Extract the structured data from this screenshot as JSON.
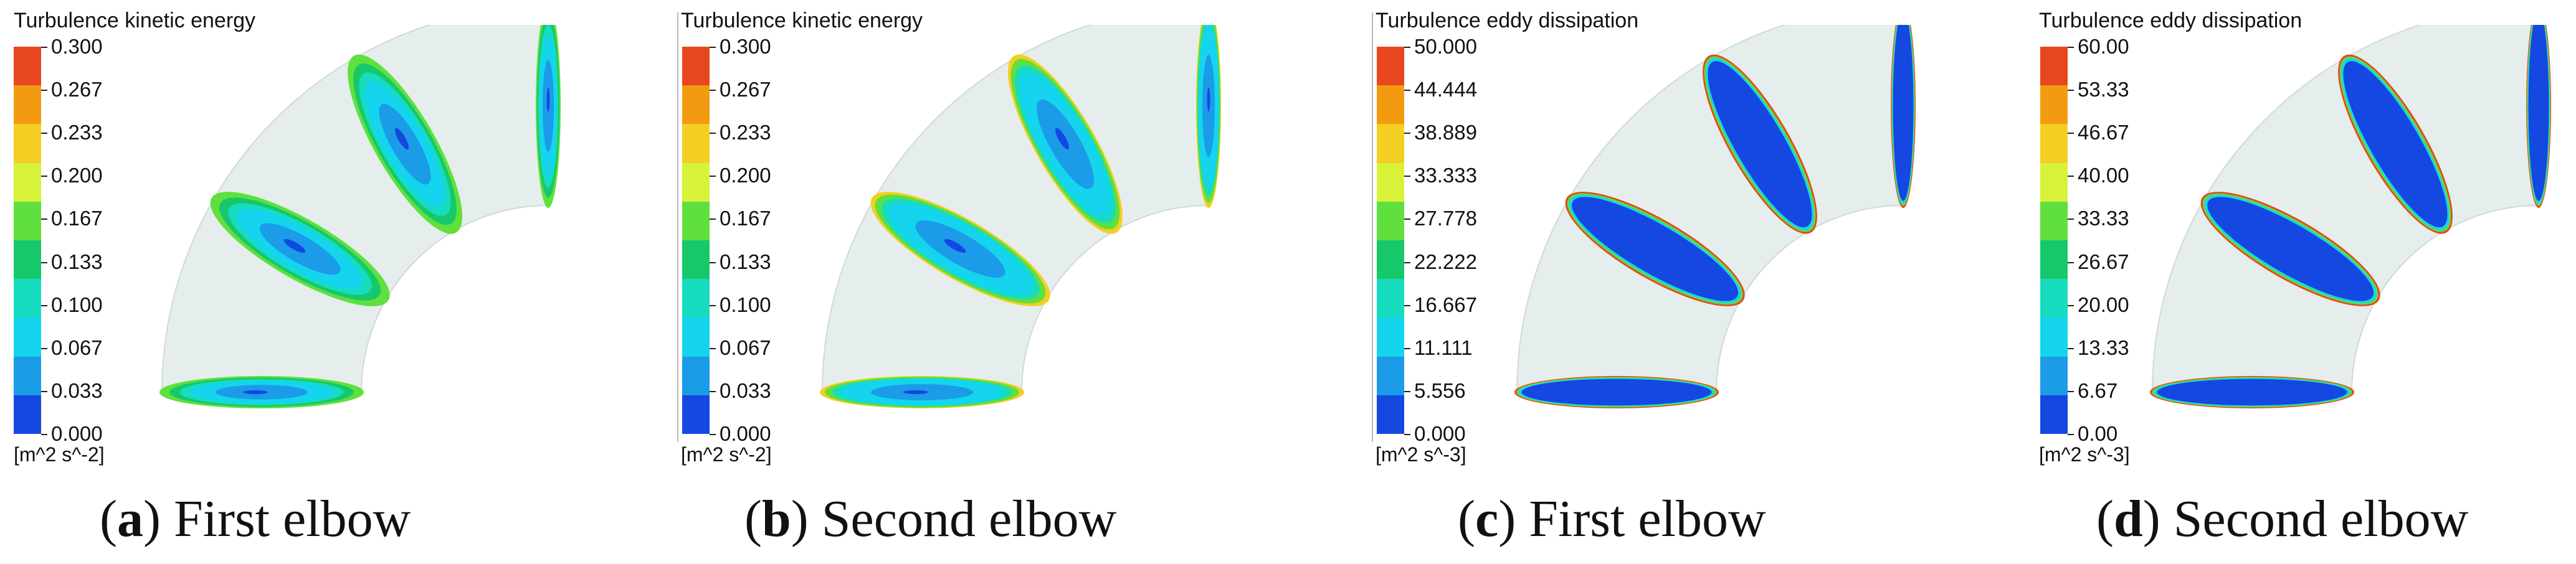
{
  "panels": [
    {
      "legend_title": "Turbulence kinetic energy",
      "ticks": [
        "0.300",
        "0.267",
        "0.233",
        "0.200",
        "0.167",
        "0.133",
        "0.100",
        "0.067",
        "0.033",
        "0.000"
      ],
      "units": "[m^2 s^-2]",
      "caption_letter": "a",
      "caption_text": "First elbow",
      "scheme": "tke",
      "elbow_variant": "first"
    },
    {
      "legend_title": "Turbulence kinetic energy",
      "ticks": [
        "0.300",
        "0.267",
        "0.233",
        "0.200",
        "0.167",
        "0.133",
        "0.100",
        "0.067",
        "0.033",
        "0.000"
      ],
      "units": "[m^2 s^-2]",
      "caption_letter": "b",
      "caption_text": "Second elbow",
      "scheme": "tke",
      "elbow_variant": "second"
    },
    {
      "legend_title": "Turbulence eddy dissipation",
      "ticks": [
        "50.000",
        "44.444",
        "38.889",
        "33.333",
        "27.778",
        "22.222",
        "16.667",
        "11.111",
        "5.556",
        "0.000"
      ],
      "units": "[m^2 s^-3]",
      "caption_letter": "c",
      "caption_text": "First elbow",
      "scheme": "eps",
      "elbow_variant": "first"
    },
    {
      "legend_title": "Turbulence eddy dissipation",
      "ticks": [
        "60.00",
        "53.33",
        "46.67",
        "40.00",
        "33.33",
        "26.67",
        "20.00",
        "13.33",
        "6.67",
        "0.00"
      ],
      "units": "[m^2 s^-3]",
      "caption_letter": "d",
      "caption_text": "Second elbow",
      "scheme": "eps",
      "elbow_variant": "second"
    }
  ],
  "colorbar_colors": [
    "#e8461e",
    "#f39b10",
    "#f2cf22",
    "#d8f23a",
    "#5fe03c",
    "#16c86a",
    "#17dcc0",
    "#15d4ee",
    "#1b9be8",
    "#1448e0"
  ],
  "pipe_color": "#e5eeed"
}
